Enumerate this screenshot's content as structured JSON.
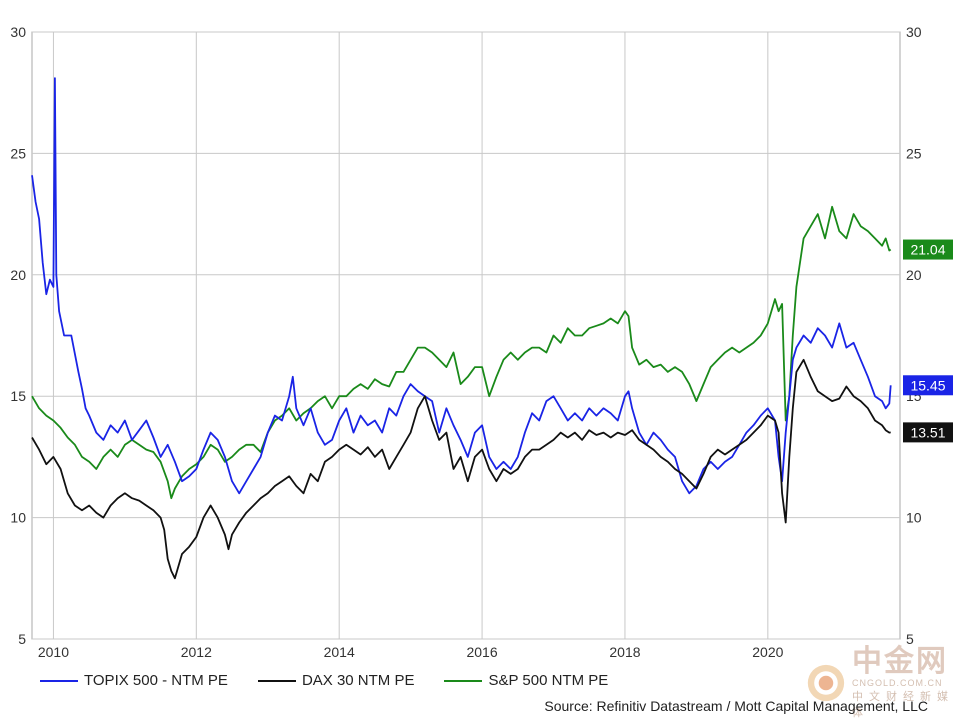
{
  "chart_data": {
    "type": "line",
    "title": "",
    "xlabel": "",
    "ylabel": "",
    "xlim": [
      2009.7,
      2021.85
    ],
    "ylim": [
      5,
      30
    ],
    "x_ticks": [
      "2010",
      "2012",
      "2014",
      "2016",
      "2018",
      "2020"
    ],
    "x_tick_values": [
      2010,
      2012,
      2014,
      2016,
      2018,
      2020
    ],
    "y_ticks": [
      "5",
      "10",
      "15",
      "20",
      "25",
      "30"
    ],
    "y_tick_values": [
      5,
      10,
      15,
      20,
      25,
      30
    ],
    "grid": true,
    "legend_position": "bottom",
    "series": [
      {
        "name": "TOPIX 500 - NTM PE",
        "color": "#1a24e6",
        "end_label": "15.45",
        "x": [
          2009.7,
          2009.75,
          2009.8,
          2009.85,
          2009.9,
          2009.95,
          2010.0,
          2010.02,
          2010.04,
          2010.08,
          2010.15,
          2010.25,
          2010.35,
          2010.4,
          2010.45,
          2010.5,
          2010.6,
          2010.7,
          2010.8,
          2010.9,
          2011.0,
          2011.1,
          2011.2,
          2011.3,
          2011.4,
          2011.5,
          2011.6,
          2011.7,
          2011.8,
          2011.9,
          2012.0,
          2012.1,
          2012.2,
          2012.3,
          2012.4,
          2012.5,
          2012.6,
          2012.7,
          2012.8,
          2012.9,
          2013.0,
          2013.1,
          2013.2,
          2013.3,
          2013.35,
          2013.4,
          2013.5,
          2013.6,
          2013.7,
          2013.8,
          2013.9,
          2014.0,
          2014.1,
          2014.2,
          2014.3,
          2014.4,
          2014.5,
          2014.6,
          2014.7,
          2014.8,
          2014.9,
          2015.0,
          2015.1,
          2015.2,
          2015.3,
          2015.4,
          2015.5,
          2015.6,
          2015.7,
          2015.8,
          2015.9,
          2016.0,
          2016.1,
          2016.2,
          2016.3,
          2016.4,
          2016.5,
          2016.6,
          2016.7,
          2016.8,
          2016.9,
          2017.0,
          2017.1,
          2017.2,
          2017.3,
          2017.4,
          2017.5,
          2017.6,
          2017.7,
          2017.8,
          2017.9,
          2018.0,
          2018.05,
          2018.1,
          2018.2,
          2018.3,
          2018.4,
          2018.5,
          2018.6,
          2018.7,
          2018.8,
          2018.9,
          2019.0,
          2019.1,
          2019.2,
          2019.3,
          2019.4,
          2019.5,
          2019.6,
          2019.7,
          2019.8,
          2019.9,
          2020.0,
          2020.1,
          2020.15,
          2020.2,
          2020.25,
          2020.3,
          2020.35,
          2020.4,
          2020.5,
          2020.6,
          2020.7,
          2020.8,
          2020.9,
          2021.0,
          2021.1,
          2021.2,
          2021.3,
          2021.4,
          2021.5,
          2021.6,
          2021.65,
          2021.7,
          2021.72
        ],
        "values": [
          24.1,
          23.0,
          22.3,
          20.5,
          19.2,
          19.8,
          19.5,
          28.1,
          20.0,
          18.5,
          17.5,
          17.5,
          16.0,
          15.3,
          14.5,
          14.2,
          13.5,
          13.2,
          13.8,
          13.5,
          14.0,
          13.2,
          13.6,
          14.0,
          13.3,
          12.5,
          13.0,
          12.3,
          11.5,
          11.7,
          12.0,
          12.8,
          13.5,
          13.2,
          12.5,
          11.5,
          11.0,
          11.5,
          12.0,
          12.5,
          13.5,
          14.2,
          14.0,
          15.0,
          15.8,
          14.5,
          13.8,
          14.5,
          13.5,
          13.0,
          13.2,
          14.0,
          14.5,
          13.5,
          14.2,
          13.8,
          14.0,
          13.5,
          14.5,
          14.2,
          15.0,
          15.5,
          15.2,
          15.0,
          14.8,
          13.5,
          14.5,
          13.8,
          13.2,
          12.5,
          13.5,
          13.8,
          12.5,
          12.0,
          12.3,
          12.0,
          12.5,
          13.5,
          14.3,
          14.0,
          14.8,
          15.0,
          14.5,
          14.0,
          14.3,
          14.0,
          14.5,
          14.2,
          14.5,
          14.3,
          14.0,
          15.0,
          15.2,
          14.5,
          13.5,
          13.0,
          13.5,
          13.2,
          12.8,
          12.5,
          11.5,
          11.0,
          11.3,
          12.0,
          12.3,
          12.0,
          12.3,
          12.5,
          13.0,
          13.5,
          13.8,
          14.2,
          14.5,
          14.0,
          12.5,
          11.5,
          13.5,
          15.0,
          16.5,
          17.0,
          17.5,
          17.2,
          17.8,
          17.5,
          17.0,
          18.0,
          17.0,
          17.2,
          16.5,
          15.8,
          15.0,
          14.8,
          14.5,
          14.7,
          15.45
        ]
      },
      {
        "name": "DAX 30 NTM PE",
        "color": "#111111",
        "end_label": "13.51",
        "x": [
          2009.7,
          2009.8,
          2009.9,
          2010.0,
          2010.1,
          2010.2,
          2010.3,
          2010.4,
          2010.5,
          2010.6,
          2010.7,
          2010.8,
          2010.9,
          2011.0,
          2011.1,
          2011.2,
          2011.3,
          2011.4,
          2011.5,
          2011.55,
          2011.6,
          2011.65,
          2011.7,
          2011.8,
          2011.9,
          2012.0,
          2012.1,
          2012.2,
          2012.3,
          2012.4,
          2012.45,
          2012.5,
          2012.6,
          2012.7,
          2012.8,
          2012.9,
          2013.0,
          2013.1,
          2013.2,
          2013.3,
          2013.4,
          2013.5,
          2013.6,
          2013.7,
          2013.8,
          2013.9,
          2014.0,
          2014.1,
          2014.2,
          2014.3,
          2014.4,
          2014.5,
          2014.6,
          2014.7,
          2014.8,
          2014.9,
          2015.0,
          2015.1,
          2015.2,
          2015.3,
          2015.4,
          2015.5,
          2015.6,
          2015.7,
          2015.8,
          2015.9,
          2016.0,
          2016.1,
          2016.2,
          2016.3,
          2016.4,
          2016.5,
          2016.6,
          2016.7,
          2016.8,
          2016.9,
          2017.0,
          2017.1,
          2017.2,
          2017.3,
          2017.4,
          2017.5,
          2017.6,
          2017.7,
          2017.8,
          2017.9,
          2018.0,
          2018.1,
          2018.2,
          2018.3,
          2018.4,
          2018.5,
          2018.6,
          2018.7,
          2018.8,
          2018.9,
          2019.0,
          2019.1,
          2019.2,
          2019.3,
          2019.4,
          2019.5,
          2019.6,
          2019.7,
          2019.8,
          2019.9,
          2020.0,
          2020.1,
          2020.15,
          2020.2,
          2020.25,
          2020.3,
          2020.35,
          2020.4,
          2020.5,
          2020.6,
          2020.7,
          2020.8,
          2020.9,
          2021.0,
          2021.1,
          2021.2,
          2021.3,
          2021.4,
          2021.5,
          2021.6,
          2021.65,
          2021.7,
          2021.72
        ],
        "values": [
          13.3,
          12.8,
          12.2,
          12.5,
          12.0,
          11.0,
          10.5,
          10.3,
          10.5,
          10.2,
          10.0,
          10.5,
          10.8,
          11.0,
          10.8,
          10.7,
          10.5,
          10.3,
          10.0,
          9.5,
          8.3,
          7.8,
          7.5,
          8.5,
          8.8,
          9.2,
          10.0,
          10.5,
          10.0,
          9.3,
          8.7,
          9.3,
          9.8,
          10.2,
          10.5,
          10.8,
          11.0,
          11.3,
          11.5,
          11.7,
          11.3,
          11.0,
          11.8,
          11.5,
          12.3,
          12.5,
          12.8,
          13.0,
          12.8,
          12.6,
          12.9,
          12.5,
          12.8,
          12.0,
          12.5,
          13.0,
          13.5,
          14.5,
          15.0,
          14.0,
          13.2,
          13.5,
          12.0,
          12.5,
          11.5,
          12.5,
          12.8,
          12.0,
          11.5,
          12.0,
          11.8,
          12.0,
          12.5,
          12.8,
          12.8,
          13.0,
          13.2,
          13.5,
          13.3,
          13.5,
          13.2,
          13.6,
          13.4,
          13.5,
          13.3,
          13.5,
          13.4,
          13.6,
          13.2,
          13.0,
          12.8,
          12.5,
          12.3,
          12.0,
          11.8,
          11.5,
          11.2,
          11.8,
          12.5,
          12.8,
          12.6,
          12.8,
          13.0,
          13.2,
          13.5,
          13.8,
          14.2,
          14.0,
          13.5,
          11.0,
          9.8,
          12.5,
          14.5,
          16.0,
          16.5,
          15.8,
          15.2,
          15.0,
          14.8,
          14.9,
          15.4,
          15.0,
          14.8,
          14.5,
          14.0,
          13.8,
          13.6,
          13.5,
          13.51
        ]
      },
      {
        "name": "S&P 500 NTM PE",
        "color": "#1a8a1a",
        "end_label": "21.04",
        "x": [
          2009.7,
          2009.8,
          2009.9,
          2010.0,
          2010.1,
          2010.2,
          2010.3,
          2010.4,
          2010.5,
          2010.6,
          2010.7,
          2010.8,
          2010.9,
          2011.0,
          2011.1,
          2011.2,
          2011.3,
          2011.4,
          2011.5,
          2011.6,
          2011.65,
          2011.7,
          2011.8,
          2011.9,
          2012.0,
          2012.1,
          2012.2,
          2012.3,
          2012.4,
          2012.5,
          2012.6,
          2012.7,
          2012.8,
          2012.9,
          2013.0,
          2013.1,
          2013.2,
          2013.3,
          2013.4,
          2013.5,
          2013.6,
          2013.7,
          2013.8,
          2013.9,
          2014.0,
          2014.1,
          2014.2,
          2014.3,
          2014.4,
          2014.5,
          2014.6,
          2014.7,
          2014.8,
          2014.9,
          2015.0,
          2015.1,
          2015.2,
          2015.3,
          2015.4,
          2015.5,
          2015.6,
          2015.7,
          2015.8,
          2015.9,
          2016.0,
          2016.1,
          2016.2,
          2016.3,
          2016.4,
          2016.5,
          2016.6,
          2016.7,
          2016.8,
          2016.9,
          2017.0,
          2017.1,
          2017.2,
          2017.3,
          2017.4,
          2017.5,
          2017.6,
          2017.7,
          2017.8,
          2017.9,
          2018.0,
          2018.05,
          2018.1,
          2018.2,
          2018.3,
          2018.4,
          2018.5,
          2018.6,
          2018.7,
          2018.8,
          2018.9,
          2019.0,
          2019.1,
          2019.2,
          2019.3,
          2019.4,
          2019.5,
          2019.6,
          2019.7,
          2019.8,
          2019.9,
          2020.0,
          2020.1,
          2020.15,
          2020.2,
          2020.25,
          2020.3,
          2020.35,
          2020.4,
          2020.5,
          2020.6,
          2020.7,
          2020.8,
          2020.9,
          2021.0,
          2021.1,
          2021.2,
          2021.3,
          2021.4,
          2021.5,
          2021.6,
          2021.65,
          2021.7,
          2021.72
        ],
        "values": [
          15.0,
          14.5,
          14.2,
          14.0,
          13.7,
          13.3,
          13.0,
          12.5,
          12.3,
          12.0,
          12.5,
          12.8,
          12.5,
          13.0,
          13.2,
          13.0,
          12.8,
          12.7,
          12.3,
          11.5,
          10.8,
          11.2,
          11.7,
          12.0,
          12.2,
          12.5,
          13.0,
          12.8,
          12.3,
          12.5,
          12.8,
          13.0,
          13.0,
          12.7,
          13.5,
          14.0,
          14.2,
          14.5,
          14.0,
          14.3,
          14.5,
          14.8,
          15.0,
          14.5,
          15.0,
          15.0,
          15.3,
          15.5,
          15.3,
          15.7,
          15.5,
          15.4,
          16.0,
          16.0,
          16.5,
          17.0,
          17.0,
          16.8,
          16.5,
          16.2,
          16.8,
          15.5,
          15.8,
          16.2,
          16.2,
          15.0,
          15.8,
          16.5,
          16.8,
          16.5,
          16.8,
          17.0,
          17.0,
          16.8,
          17.5,
          17.2,
          17.8,
          17.5,
          17.5,
          17.8,
          17.9,
          18.0,
          18.2,
          18.0,
          18.5,
          18.3,
          17.0,
          16.3,
          16.5,
          16.2,
          16.3,
          16.0,
          16.2,
          16.0,
          15.5,
          14.8,
          15.5,
          16.2,
          16.5,
          16.8,
          17.0,
          16.8,
          17.0,
          17.2,
          17.5,
          18.0,
          19.0,
          18.5,
          18.8,
          14.0,
          15.0,
          17.5,
          19.5,
          21.5,
          22.0,
          22.5,
          21.5,
          22.8,
          21.8,
          21.5,
          22.5,
          22.0,
          21.8,
          21.5,
          21.2,
          21.5,
          21.0,
          21.04
        ]
      }
    ]
  },
  "source": "Source: Refinitiv Datastream / Mott Capital Management, LLC",
  "watermark": {
    "brand": "中金网",
    "domain": "CNGOLD.COM.CN",
    "tagline": "中文财经新媒体"
  }
}
